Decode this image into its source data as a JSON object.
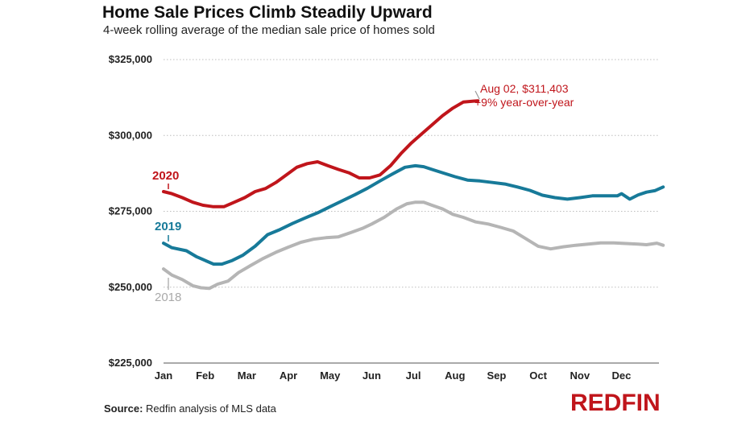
{
  "header": {
    "title": "Home Sale Prices Climb Steadily Upward",
    "subtitle": "4-week rolling average of the median sale price of homes sold"
  },
  "footer": {
    "source_label": "Source:",
    "source_text": "Redfin analysis of MLS data",
    "logo": "REDFIN"
  },
  "colors": {
    "2020": "#c0151b",
    "2019": "#177a99",
    "2018": "#b5b5b5",
    "grid": "#bdbdbd"
  },
  "chart_data": {
    "type": "line",
    "title": "Home Sale Prices Climb Steadily Upward",
    "subtitle": "4-week rolling average of the median sale price of homes sold",
    "xlabel": "",
    "ylabel": "",
    "ylim": [
      225000,
      325000
    ],
    "xlim": [
      0,
      12
    ],
    "yticks": [
      225000,
      250000,
      275000,
      300000,
      325000
    ],
    "ytick_labels": [
      "$225,000",
      "$250,000",
      "$275,000",
      "$300,000",
      "$325,000"
    ],
    "xticks": [
      0,
      1,
      2,
      3,
      4,
      5,
      6,
      7,
      8,
      9,
      10,
      11
    ],
    "xtick_labels": [
      "Jan",
      "Feb",
      "Mar",
      "Apr",
      "May",
      "Jun",
      "Jul",
      "Aug",
      "Sep",
      "Oct",
      "Nov",
      "Dec"
    ],
    "grid": "horizontal dotted",
    "series": [
      {
        "name": "2018",
        "color": "#b5b5b5",
        "x": [
          0,
          0.2,
          0.45,
          0.7,
          0.9,
          1.1,
          1.3,
          1.55,
          1.8,
          2.1,
          2.4,
          2.7,
          3.0,
          3.3,
          3.6,
          3.9,
          4.2,
          4.5,
          4.8,
          5.0,
          5.3,
          5.6,
          5.85,
          6.05,
          6.25,
          6.45,
          6.7,
          6.95,
          7.2,
          7.5,
          7.8,
          8.1,
          8.4,
          8.7,
          9.0,
          9.3,
          9.6,
          9.9,
          10.2,
          10.5,
          10.8,
          11.1,
          11.4,
          11.6,
          11.85,
          12.0
        ],
        "values": [
          256000,
          254000,
          252500,
          250500,
          249800,
          249600,
          251000,
          252000,
          254800,
          257200,
          259500,
          261500,
          263200,
          264800,
          265800,
          266300,
          266600,
          268000,
          269500,
          270800,
          273000,
          275800,
          277500,
          278000,
          278000,
          277000,
          275800,
          274000,
          273000,
          271500,
          270800,
          269700,
          268500,
          266000,
          263500,
          262600,
          263300,
          263800,
          264200,
          264600,
          264600,
          264400,
          264200,
          264000,
          264500,
          263800
        ]
      },
      {
        "name": "2019",
        "color": "#177a99",
        "x": [
          0,
          0.2,
          0.55,
          0.8,
          1.0,
          1.2,
          1.4,
          1.65,
          1.9,
          2.2,
          2.5,
          2.8,
          3.1,
          3.4,
          3.7,
          4.0,
          4.3,
          4.6,
          4.9,
          5.2,
          5.5,
          5.8,
          6.05,
          6.25,
          6.45,
          6.7,
          7.0,
          7.3,
          7.6,
          7.9,
          8.2,
          8.5,
          8.8,
          9.1,
          9.4,
          9.7,
          10.0,
          10.3,
          10.6,
          10.9,
          11.0,
          11.2,
          11.4,
          11.6,
          11.8,
          12.0
        ],
        "values": [
          264500,
          263000,
          262000,
          260000,
          258800,
          257600,
          257600,
          258800,
          260500,
          263500,
          267300,
          269000,
          271000,
          272800,
          274500,
          276500,
          278500,
          280500,
          282600,
          285000,
          287300,
          289500,
          290000,
          289700,
          288800,
          287700,
          286400,
          285300,
          285000,
          284500,
          284000,
          283000,
          281900,
          280300,
          279500,
          279000,
          279500,
          280100,
          280100,
          280100,
          280800,
          279000,
          280400,
          281300,
          281800,
          283000
        ]
      },
      {
        "name": "2020",
        "color": "#c0151b",
        "x": [
          0,
          0.2,
          0.45,
          0.7,
          0.95,
          1.2,
          1.45,
          1.7,
          1.95,
          2.2,
          2.45,
          2.7,
          2.95,
          3.2,
          3.45,
          3.7,
          3.95,
          4.2,
          4.45,
          4.7,
          4.95,
          5.2,
          5.45,
          5.7,
          5.95,
          6.2,
          6.45,
          6.7,
          6.95,
          7.2,
          7.45,
          7.55
        ],
        "values": [
          281500,
          280800,
          279500,
          278000,
          277000,
          276500,
          276500,
          278000,
          279500,
          281500,
          282500,
          284500,
          287000,
          289500,
          290700,
          291300,
          290000,
          288800,
          287700,
          286000,
          286000,
          287000,
          290000,
          294000,
          297500,
          300500,
          303500,
          306500,
          309000,
          311000,
          311300,
          311403
        ]
      }
    ],
    "series_labels": [
      "2020",
      "2019",
      "2018"
    ],
    "annotation": {
      "line1": "Aug 02, $311,403",
      "line2": "+9% year-over-year",
      "x": 7.55,
      "y": 311403
    }
  }
}
